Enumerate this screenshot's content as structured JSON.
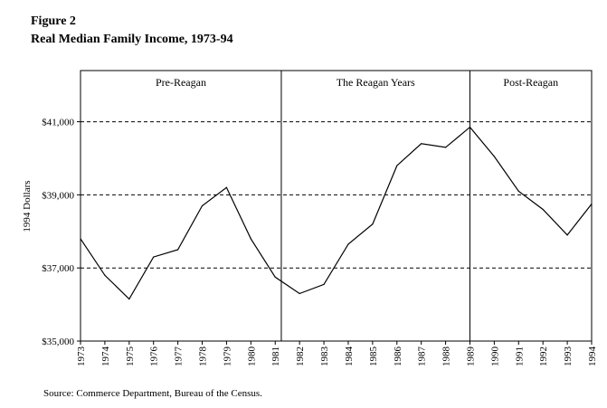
{
  "figure": {
    "label": "Figure 2",
    "title": "Real Median Family Income, 1973-94"
  },
  "source": "Source: Commerce Department, Bureau of the Census.",
  "chart_data": {
    "type": "line",
    "title": "Real Median Family Income, 1973-94",
    "xlabel": "",
    "ylabel": "1994 Dollars",
    "x": [
      "1973",
      "1974",
      "1975",
      "1976",
      "1977",
      "1978",
      "1979",
      "1980",
      "1981",
      "1982",
      "1983",
      "1984",
      "1985",
      "1986",
      "1987",
      "1988",
      "1989",
      "1990",
      "1991",
      "1992",
      "1993",
      "1994"
    ],
    "series": [
      {
        "values": [
          37800,
          36800,
          36150,
          37300,
          37500,
          38700,
          39200,
          37800,
          36750,
          36300,
          36550,
          37650,
          38200,
          39800,
          40400,
          40300,
          40850,
          40050,
          39100,
          38600,
          37900,
          38750
        ]
      }
    ],
    "ylim": [
      35000,
      42400
    ],
    "yticks": [
      35000,
      37000,
      39000,
      41000
    ],
    "ytick_labels": [
      "$35,000",
      "$37,000",
      "$39,000",
      "$41,000"
    ],
    "grid": "dashed horizontal lines at $37,000, $39,000, $41,000",
    "dividers": [
      {
        "after": "1981",
        "before": "1982"
      },
      {
        "at": "1989"
      }
    ],
    "regions": [
      {
        "label": "Pre-Reagan",
        "from": "1973",
        "to": "1981.5"
      },
      {
        "label": "The Reagan Years",
        "from": "1981.5",
        "to": "1989"
      },
      {
        "label": "Post-Reagan",
        "from": "1989",
        "to": "1994"
      }
    ],
    "line_color": "#000000",
    "gridline_color": "#000000"
  }
}
